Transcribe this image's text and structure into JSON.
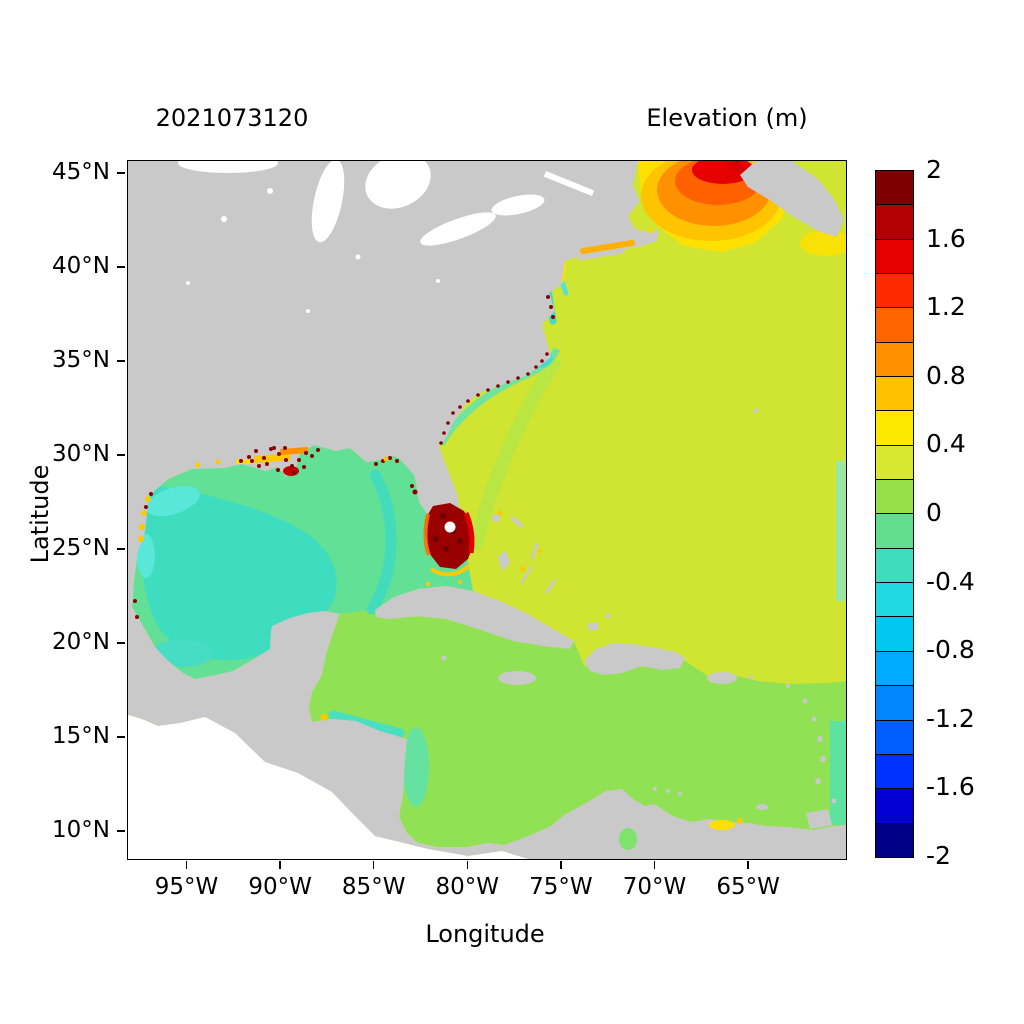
{
  "header": {
    "timestamp": "2021073120",
    "title": "Elevation (m)"
  },
  "axes": {
    "xlabel": "Longitude",
    "ylabel": "Latitude",
    "x_ticks": [
      "95°W",
      "90°W",
      "85°W",
      "80°W",
      "75°W",
      "70°W",
      "65°W"
    ],
    "y_ticks": [
      "45°N",
      "40°N",
      "35°N",
      "30°N",
      "25°N",
      "20°N",
      "15°N",
      "10°N"
    ]
  },
  "colorbar": {
    "ticks": [
      "2",
      "1.6",
      "1.2",
      "0.8",
      "0.4",
      "0",
      "-0.4",
      "-0.8",
      "-1.2",
      "-1.6",
      "-2"
    ],
    "min": -2,
    "max": 2,
    "block_step": 0.2,
    "colors_top_to_bottom": [
      "#7f0000",
      "#b30000",
      "#e60000",
      "#ff2a00",
      "#ff6400",
      "#ff9000",
      "#ffc000",
      "#ffe800",
      "#d8e830",
      "#96e04a",
      "#62df8e",
      "#3eddbe",
      "#22d8e0",
      "#00c8f0",
      "#00aaff",
      "#0086ff",
      "#005eff",
      "#0032ff",
      "#0000d2",
      "#000086"
    ]
  },
  "map_colors": {
    "land": "#c9c9c9",
    "no_data": "#ffffff",
    "atlantic": "#d0e432",
    "caribbean": "#90e154",
    "gulf_green": "#62e096",
    "gulf_teal": "#3eddc0",
    "surge_yellow": "#ffe000",
    "surge_gold": "#ffc400",
    "surge_orange": "#ff9000",
    "surge_deep_orange": "#ff6000",
    "surge_red": "#e60000",
    "surge_dark_red": "#8b0000"
  },
  "chart_data": {
    "type": "heatmap",
    "subtype": "geographic-filled-contour",
    "title": "Elevation (m)",
    "timestamp_label": "2021073120",
    "xlabel": "Longitude",
    "ylabel": "Latitude",
    "x_ticks": [
      "95°W",
      "90°W",
      "85°W",
      "80°W",
      "75°W",
      "70°W",
      "65°W"
    ],
    "y_ticks": [
      "45°N",
      "40°N",
      "35°N",
      "30°N",
      "25°N",
      "20°N",
      "15°N",
      "10°N"
    ],
    "x_range_deg_west": [
      98,
      60
    ],
    "y_range_deg_north": [
      8.5,
      45.6
    ],
    "grid": false,
    "legend_position": "right",
    "colorbar": {
      "label": "Elevation (m)",
      "units": "m",
      "min": -2,
      "max": 2,
      "block_step": 0.2,
      "tick_values": [
        2,
        1.6,
        1.2,
        0.8,
        0.4,
        0,
        -0.4,
        -0.8,
        -1.2,
        -1.6,
        -2
      ]
    },
    "land_mask_color": "#c9c9c9",
    "no_data_color": "#ffffff",
    "regions": [
      {
        "name": "Open Atlantic Ocean",
        "approx_elevation_m": 0.3
      },
      {
        "name": "Caribbean Sea",
        "approx_elevation_m": 0.1
      },
      {
        "name": "Gulf of Mexico shelf",
        "approx_elevation_m": -0.1
      },
      {
        "name": "Western and central Gulf of Mexico",
        "approx_elevation_m": -0.3
      },
      {
        "name": "Gulf of Maine (orange lobe)",
        "approx_elevation_m": 1.0
      },
      {
        "name": "Bay of Fundy at top edge (red)",
        "approx_elevation_m": 1.7
      },
      {
        "name": "South Florida coast (dark red patch)",
        "approx_elevation_m": 2.0
      },
      {
        "name": "Louisiana-Mississippi coast (dark red speckles)",
        "approx_elevation_m": 1.9
      },
      {
        "name": "US southeast coastal strip GA-NC",
        "approx_elevation_m": -0.2
      },
      {
        "name": "Long Island Sound",
        "approx_elevation_m": 0.8
      },
      {
        "name": "Venezuela coast spot",
        "approx_elevation_m": 0.5
      },
      {
        "name": "Land (gray mask)",
        "approx_elevation_m": null
      },
      {
        "name": "Pacific, outside model domain (white)",
        "approx_elevation_m": null
      }
    ]
  }
}
